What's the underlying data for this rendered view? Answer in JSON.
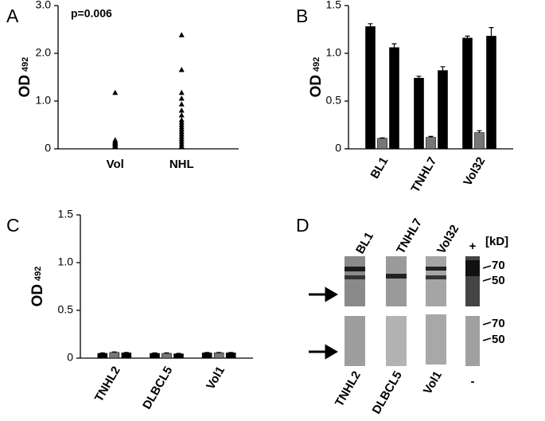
{
  "chart_data": [
    {
      "type": "strip",
      "panel": "A",
      "annotation": "p=0.006",
      "y_label": "OD",
      "y_label_sub": "492",
      "categories": [
        "Vol",
        "NHL"
      ],
      "values": [
        [
          1.17,
          0.18,
          0.15,
          0.13,
          0.11,
          0.09,
          0.07,
          0.05,
          0.04
        ],
        [
          2.38,
          1.65,
          1.17,
          1.05,
          0.93,
          0.8,
          0.7,
          0.6,
          0.55,
          0.5,
          0.45,
          0.4,
          0.35,
          0.3,
          0.25,
          0.2,
          0.15,
          0.1,
          0.05
        ]
      ],
      "color": "#000000",
      "ylim": [
        0,
        3
      ],
      "yticks": [
        0,
        {
          "value": 1,
          "label": "1.0"
        },
        {
          "value": 2,
          "label": "2.0"
        },
        {
          "value": 3,
          "label": "3.0"
        }
      ]
    },
    {
      "type": "bar",
      "panel": "B",
      "y_label": "OD",
      "y_label_sub": "492",
      "categories": [
        "BL1",
        "TNHL7",
        "Vol32"
      ],
      "series": [
        {
          "color": "#000000",
          "values": [
            1.28,
            0.74,
            1.16
          ],
          "errors": [
            0.03,
            0.02,
            0.02
          ]
        },
        {
          "color": "#777777",
          "values": [
            0.11,
            0.12,
            0.17
          ],
          "errors": [
            0.005,
            0.01,
            0.02
          ]
        },
        {
          "color": "#000000",
          "values": [
            1.06,
            0.82,
            1.18
          ],
          "errors": [
            0.04,
            0.04,
            0.09
          ]
        }
      ],
      "ylim": [
        0,
        1.5
      ],
      "yticks": [
        0,
        0.5,
        {
          "value": 1,
          "label": "1.0"
        },
        1.5
      ]
    },
    {
      "type": "bar",
      "panel": "C",
      "y_label": "OD",
      "y_label_sub": "492",
      "categories": [
        "TNHL2",
        "DLBCL5",
        "Vol1"
      ],
      "series": [
        {
          "color": "#000000",
          "values": [
            0.05,
            0.05,
            0.055
          ],
          "errors": [
            0.005,
            0.005,
            0.005
          ]
        },
        {
          "color": "#777777",
          "values": [
            0.06,
            0.05,
            0.055
          ],
          "errors": [
            0.005,
            0.005,
            0.005
          ]
        },
        {
          "color": "#000000",
          "values": [
            0.055,
            0.045,
            0.055
          ],
          "errors": [
            0.005,
            0.005,
            0.005
          ]
        }
      ],
      "ylim": [
        0,
        1.5
      ],
      "yticks": [
        0,
        0.5,
        {
          "value": 1,
          "label": "1.0"
        },
        1.5
      ]
    }
  ],
  "blot": {
    "panel": "D",
    "top_labels": [
      "BL1",
      "TNHL7",
      "Vol32",
      "+"
    ],
    "unit": "[kD]",
    "markers_top": [
      70,
      50
    ],
    "markers_bottom": [
      70,
      50
    ],
    "bottom_labels": [
      "TNHL2",
      "DLBCL5",
      "Vol1",
      "-"
    ]
  }
}
